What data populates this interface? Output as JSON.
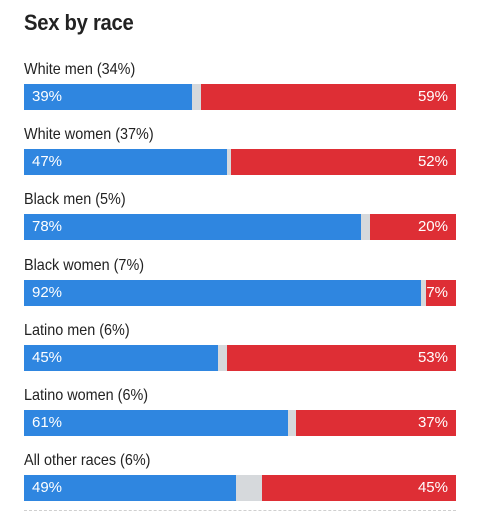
{
  "chart_data": {
    "type": "bar",
    "title": "Sex by race",
    "orientation": "horizontal-stacked",
    "categories": [
      "White men (34%)",
      "White women (37%)",
      "Black men (5%)",
      "Black women (7%)",
      "Latino men (6%)",
      "Latino women (6%)",
      "All other races (6%)"
    ],
    "series": [
      {
        "values": [
          39,
          47,
          78,
          92,
          45,
          61,
          49
        ],
        "color": "#2f86e0"
      },
      {
        "values": [
          59,
          52,
          20,
          7,
          53,
          37,
          45
        ],
        "color": "#de2e35"
      }
    ],
    "value_labels": [
      [
        "39%",
        "59%"
      ],
      [
        "47%",
        "52%"
      ],
      [
        "78%",
        "20%"
      ],
      [
        "92%",
        "7%"
      ],
      [
        "45%",
        "53%"
      ],
      [
        "61%",
        "37%"
      ],
      [
        "49%",
        "45%"
      ]
    ],
    "xlim": [
      0,
      100
    ],
    "remainder_color": "#d6d9dc"
  }
}
